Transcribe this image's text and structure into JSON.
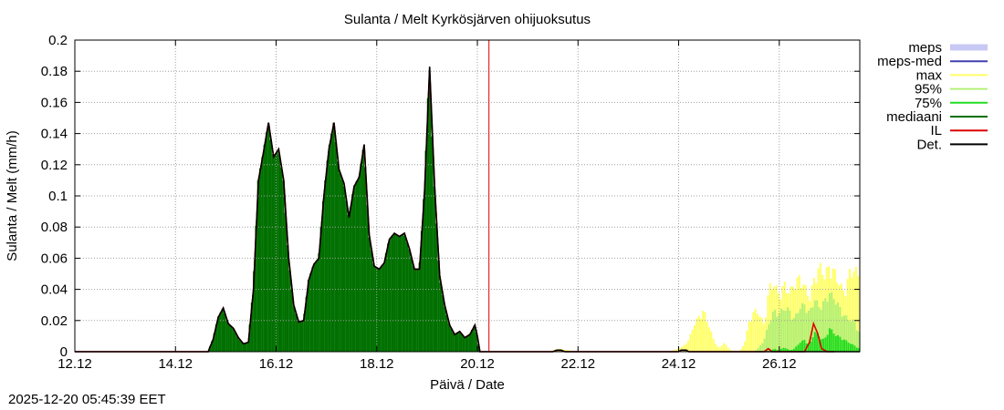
{
  "timestamp": "2025-12-20 05:45:39 EET",
  "chart_data": {
    "type": "area",
    "title": "Sulanta / Melt  Kyrkösjärven ohijuoksutus",
    "xlabel": "Päivä / Date",
    "ylabel": "Sulanta / Melt (mm/h)",
    "ylim": [
      0,
      0.2
    ],
    "xlim_days": [
      12,
      27.6
    ],
    "grid": true,
    "legend_position": "right",
    "y_ticks": [
      0,
      0.02,
      0.04,
      0.06,
      0.08,
      0.1,
      0.12,
      0.14,
      0.16,
      0.18,
      0.2
    ],
    "y_tick_labels": [
      "0",
      "0.02",
      "0.04",
      "0.06",
      "0.08",
      "0.1",
      "0.12",
      "0.14",
      "0.16",
      "0.18",
      "0.2"
    ],
    "x_ticks": [
      12,
      14,
      16,
      18,
      20,
      22,
      24,
      26
    ],
    "x_tick_labels": [
      "12.12",
      "14.12",
      "16.12",
      "18.12",
      "20.12",
      "22.12",
      "24.12",
      "26.12"
    ],
    "forecast_start_day": 20.23,
    "legend": [
      {
        "name": "meps",
        "color": "#c8c8f5",
        "style": "band"
      },
      {
        "name": "meps-med",
        "color": "#4040b0",
        "style": "line"
      },
      {
        "name": "max",
        "color": "#ffff66",
        "style": "line"
      },
      {
        "name": "95%",
        "color": "#b4f078",
        "style": "line"
      },
      {
        "name": "75%",
        "color": "#22dd22",
        "style": "line"
      },
      {
        "name": "mediaani",
        "color": "#007000",
        "style": "line"
      },
      {
        "name": "IL",
        "color": "#dd0000",
        "style": "line"
      },
      {
        "name": "Det.",
        "color": "#000000",
        "style": "line"
      }
    ],
    "series": [
      {
        "name": "IL",
        "color": "#dd0000",
        "x": [
          12.0,
          14.65,
          14.75,
          14.85,
          14.95,
          15.05,
          15.15,
          15.25,
          15.35,
          15.45,
          15.55,
          15.65,
          15.75,
          15.85,
          15.95,
          16.05,
          16.15,
          16.25,
          16.3,
          16.35,
          16.45,
          16.55,
          16.65,
          16.75,
          16.85,
          16.95,
          17.05,
          17.15,
          17.25,
          17.35,
          17.45,
          17.55,
          17.65,
          17.75,
          17.85,
          17.95,
          18.05,
          18.15,
          18.25,
          18.35,
          18.45,
          18.55,
          18.65,
          18.75,
          18.85,
          18.95,
          19.05,
          19.15,
          19.25,
          19.35,
          19.45,
          19.55,
          19.65,
          19.75,
          19.85,
          19.95,
          20.0,
          20.05,
          20.15,
          21.5,
          21.58,
          21.66,
          21.74,
          22.0,
          24.0,
          24.05,
          24.15,
          24.2,
          25.5,
          25.7,
          25.78,
          25.86,
          26.3,
          26.5,
          26.6,
          26.68,
          26.76,
          26.84,
          26.95,
          27.1
        ],
        "y": [
          0,
          0,
          0.008,
          0.022,
          0.028,
          0.018,
          0.015,
          0.009,
          0.005,
          0.006,
          0.04,
          0.11,
          0.128,
          0.147,
          0.125,
          0.13,
          0.11,
          0.06,
          0.045,
          0.03,
          0.019,
          0.02,
          0.046,
          0.056,
          0.06,
          0.1,
          0.13,
          0.147,
          0.117,
          0.108,
          0.086,
          0.106,
          0.112,
          0.133,
          0.075,
          0.055,
          0.053,
          0.057,
          0.072,
          0.076,
          0.074,
          0.076,
          0.066,
          0.053,
          0.053,
          0.102,
          0.181,
          0.106,
          0.049,
          0.03,
          0.017,
          0.011,
          0.013,
          0.009,
          0.011,
          0.017,
          0.01,
          0,
          0,
          0,
          0.001,
          0.001,
          0,
          0,
          0,
          0.001,
          0.001,
          0,
          0,
          0,
          0.002,
          0,
          0,
          0,
          0.006,
          0.018,
          0.012,
          0.002,
          0,
          0
        ]
      },
      {
        "name": "Det.",
        "color": "#000000",
        "x": [
          12.0,
          14.65,
          14.75,
          14.85,
          14.95,
          15.05,
          15.15,
          15.25,
          15.35,
          15.45,
          15.55,
          15.65,
          15.75,
          15.85,
          15.95,
          16.05,
          16.15,
          16.25,
          16.3,
          16.35,
          16.45,
          16.55,
          16.65,
          16.75,
          16.85,
          16.95,
          17.05,
          17.15,
          17.25,
          17.35,
          17.45,
          17.55,
          17.65,
          17.75,
          17.85,
          17.95,
          18.05,
          18.15,
          18.25,
          18.35,
          18.45,
          18.55,
          18.65,
          18.75,
          18.85,
          18.95,
          19.05,
          19.15,
          19.25,
          19.35,
          19.45,
          19.55,
          19.65,
          19.75,
          19.85,
          19.95,
          20.0,
          20.05,
          20.15,
          21.5,
          21.58,
          21.66,
          21.74,
          22.0,
          24.0,
          24.05,
          24.15,
          24.2,
          27.6
        ],
        "y": [
          0,
          0,
          0.008,
          0.022,
          0.028,
          0.018,
          0.015,
          0.009,
          0.005,
          0.006,
          0.04,
          0.11,
          0.128,
          0.147,
          0.125,
          0.13,
          0.11,
          0.06,
          0.045,
          0.03,
          0.019,
          0.02,
          0.046,
          0.056,
          0.06,
          0.1,
          0.13,
          0.147,
          0.117,
          0.108,
          0.086,
          0.106,
          0.112,
          0.133,
          0.075,
          0.055,
          0.053,
          0.057,
          0.072,
          0.076,
          0.074,
          0.076,
          0.066,
          0.053,
          0.053,
          0.102,
          0.183,
          0.106,
          0.049,
          0.03,
          0.017,
          0.011,
          0.013,
          0.009,
          0.011,
          0.017,
          0.01,
          0,
          0,
          0,
          0.001,
          0.001,
          0,
          0,
          0,
          0.001,
          0.001,
          0,
          0
        ]
      }
    ],
    "bands": [
      {
        "name": "max",
        "color": "#ffff66",
        "x": [
          21.4,
          21.6,
          21.8,
          22.0,
          23.8,
          24.0,
          24.1,
          24.2,
          24.3,
          24.4,
          24.5,
          24.6,
          24.7,
          24.8,
          24.9,
          25.0,
          25.1,
          25.2,
          25.3,
          25.4,
          25.5,
          25.6,
          25.7,
          25.8,
          25.9,
          26.0,
          26.1,
          26.2,
          26.3,
          26.4,
          26.5,
          26.6,
          26.7,
          26.8,
          26.9,
          27.0,
          27.1,
          27.2,
          27.3,
          27.4,
          27.5,
          27.6
        ],
        "y": [
          0,
          0.002,
          0.001,
          0,
          0,
          0.002,
          0.004,
          0.008,
          0.018,
          0.024,
          0.028,
          0.018,
          0.008,
          0.002,
          0.006,
          0.002,
          0,
          0,
          0.005,
          0.02,
          0.028,
          0.026,
          0.018,
          0.044,
          0.046,
          0.038,
          0.046,
          0.04,
          0.046,
          0.05,
          0.045,
          0.036,
          0.05,
          0.058,
          0.052,
          0.058,
          0.054,
          0.046,
          0.04,
          0.054,
          0.056,
          0.05
        ]
      },
      {
        "name": "95%",
        "color": "#b4f078",
        "x": [
          25.5,
          25.6,
          25.7,
          25.8,
          25.9,
          26.0,
          26.1,
          26.2,
          26.3,
          26.4,
          26.5,
          26.6,
          26.7,
          26.8,
          26.9,
          27.0,
          27.1,
          27.2,
          27.3,
          27.4,
          27.5,
          27.6
        ],
        "y": [
          0,
          0.003,
          0.008,
          0.02,
          0.028,
          0.026,
          0.03,
          0.028,
          0.022,
          0.03,
          0.032,
          0.026,
          0.036,
          0.03,
          0.034,
          0.04,
          0.036,
          0.03,
          0.024,
          0.022,
          0.02,
          0.012
        ]
      },
      {
        "name": "75%",
        "color": "#22dd22",
        "x": [
          25.5,
          25.8,
          25.9,
          26.0,
          26.1,
          26.2,
          26.3,
          26.4,
          26.5,
          26.6,
          26.7,
          26.8,
          26.9,
          27.0,
          27.1,
          27.2,
          27.3,
          27.4,
          27.5,
          27.6
        ],
        "y": [
          0,
          0,
          0.002,
          0.001,
          0.003,
          0.001,
          0.002,
          0.006,
          0.008,
          0.004,
          0.014,
          0.01,
          0.008,
          0.016,
          0.012,
          0.01,
          0.008,
          0.006,
          0.004,
          0.002
        ]
      }
    ]
  }
}
